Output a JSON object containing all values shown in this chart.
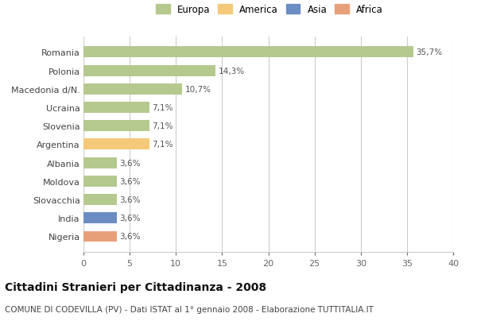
{
  "categories": [
    "Romania",
    "Polonia",
    "Macedonia d/N.",
    "Ucraina",
    "Slovenia",
    "Argentina",
    "Albania",
    "Moldova",
    "Slovacchia",
    "India",
    "Nigeria"
  ],
  "values": [
    35.7,
    14.3,
    10.7,
    7.1,
    7.1,
    7.1,
    3.6,
    3.6,
    3.6,
    3.6,
    3.6
  ],
  "labels": [
    "35,7%",
    "14,3%",
    "10,7%",
    "7,1%",
    "7,1%",
    "7,1%",
    "3,6%",
    "3,6%",
    "3,6%",
    "3,6%",
    "3,6%"
  ],
  "colors": [
    "#b5c98e",
    "#b5c98e",
    "#b5c98e",
    "#b5c98e",
    "#b5c98e",
    "#f5c97a",
    "#b5c98e",
    "#b5c98e",
    "#b5c98e",
    "#6b8dc4",
    "#e8a07a"
  ],
  "legend_labels": [
    "Europa",
    "America",
    "Asia",
    "Africa"
  ],
  "legend_colors": [
    "#b5c98e",
    "#f5c97a",
    "#6b8dc4",
    "#e8a07a"
  ],
  "title": "Cittadini Stranieri per Cittadinanza - 2008",
  "subtitle": "COMUNE DI CODEVILLA (PV) - Dati ISTAT al 1° gennaio 2008 - Elaborazione TUTTITALIA.IT",
  "xlim": [
    0,
    40
  ],
  "xticks": [
    0,
    5,
    10,
    15,
    20,
    25,
    30,
    35,
    40
  ],
  "background_color": "#ffffff",
  "grid_color": "#cccccc",
  "bar_height": 0.6
}
